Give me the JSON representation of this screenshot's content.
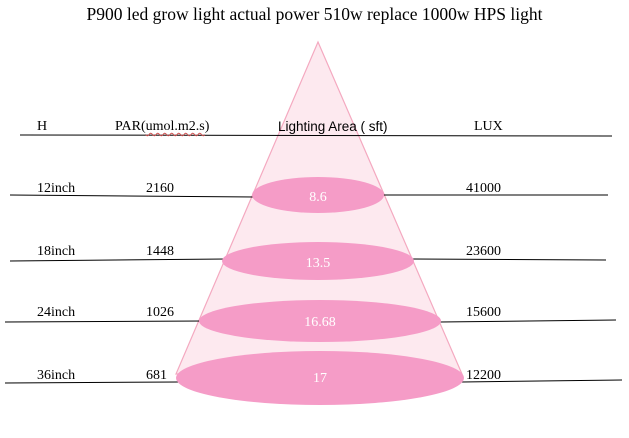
{
  "title": "P900 led grow light actual power 510w replace 1000w HPS light",
  "headers": {
    "height": "H",
    "par_prefix": "PAR(",
    "par_unit": "umol.m2.s",
    "par_suffix": ")",
    "area": "Lighting Area ( sft)",
    "lux": "LUX"
  },
  "rows": [
    {
      "height": "12inch",
      "par": "2160",
      "area": "8.6",
      "lux": "41000"
    },
    {
      "height": "18inch",
      "par": "1448",
      "area": "13.5",
      "lux": "23600"
    },
    {
      "height": "24inch",
      "par": "1026",
      "area": "16.68",
      "lux": "15600"
    },
    {
      "height": "36inch",
      "par": "681",
      "area": "17",
      "lux": "12200"
    }
  ],
  "colors": {
    "cone_fill": "#fde9ef",
    "cone_stroke": "#f4a9c0",
    "ellipse_fill": "#f59cc7",
    "line": "#000000",
    "text": "#000000"
  }
}
